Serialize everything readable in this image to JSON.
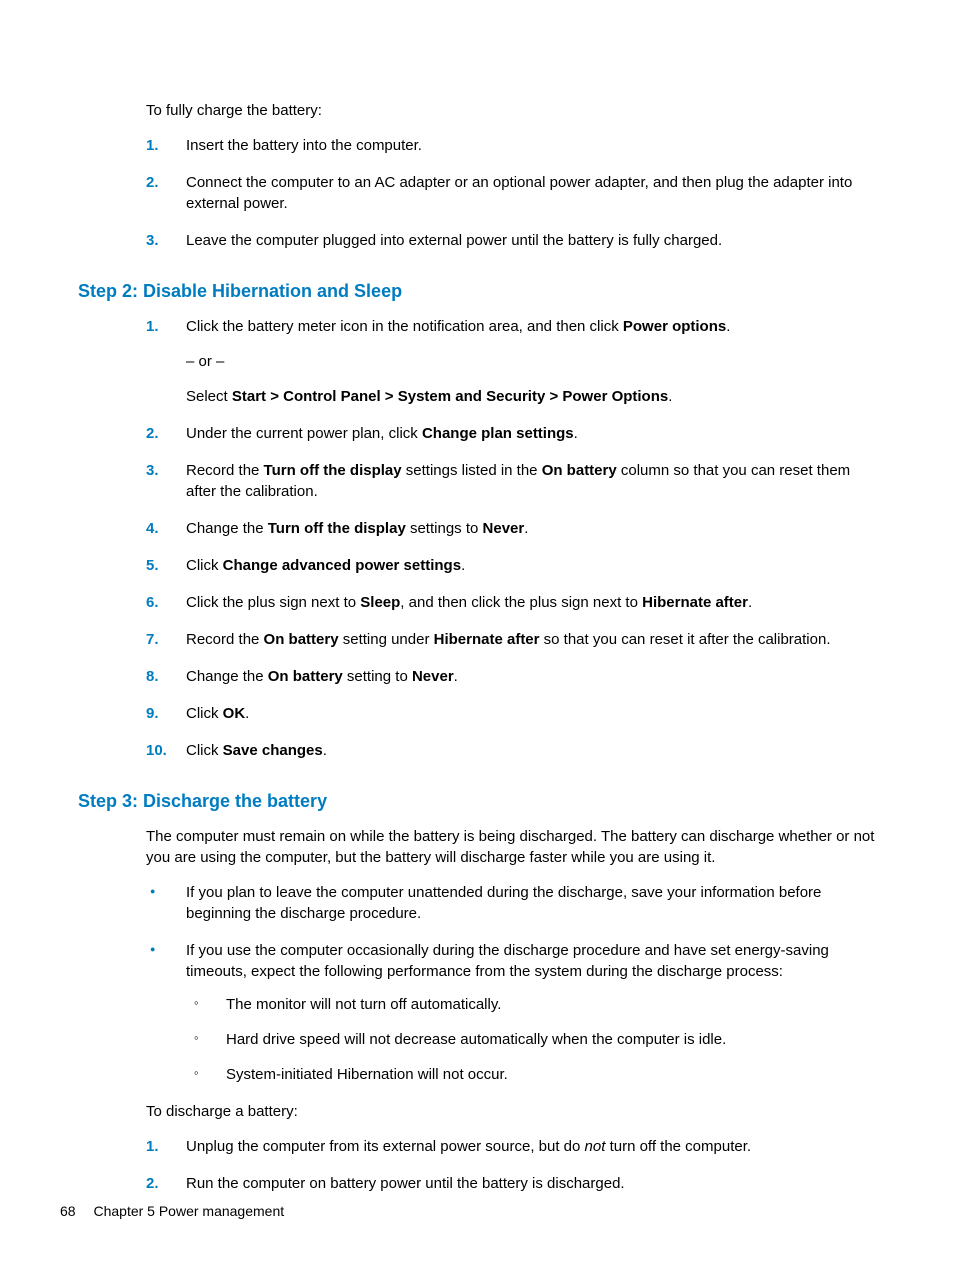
{
  "colors": {
    "accent": "#007cc1",
    "text": "#000000",
    "bg": "#ffffff"
  },
  "intro": "To fully charge the battery:",
  "chargeSteps": {
    "s1": "Insert the battery into the computer.",
    "s2": "Connect the computer to an AC adapter or an optional power adapter, and then plug the adapter into external power.",
    "s3": "Leave the computer plugged into external power until the battery is fully charged."
  },
  "step2": {
    "heading": "Step 2: Disable Hibernation and Sleep",
    "s1a": "Click the battery meter icon in the notification area, and then click ",
    "s1b": "Power options",
    "s1c": ".",
    "or": "– or –",
    "s1d": "Select ",
    "s1e": "Start > Control Panel > System and Security > Power Options",
    "s1f": ".",
    "s2a": "Under the current power plan, click ",
    "s2b": "Change plan settings",
    "s2c": ".",
    "s3a": "Record the ",
    "s3b": "Turn off the display",
    "s3c": " settings listed in the ",
    "s3d": "On battery",
    "s3e": " column so that you can reset them after the calibration.",
    "s4a": "Change the ",
    "s4b": "Turn off the display",
    "s4c": " settings to ",
    "s4d": "Never",
    "s4e": ".",
    "s5a": "Click ",
    "s5b": "Change advanced power settings",
    "s5c": ".",
    "s6a": "Click the plus sign next to ",
    "s6b": "Sleep",
    "s6c": ", and then click the plus sign next to ",
    "s6d": "Hibernate after",
    "s6e": ".",
    "s7a": "Record the ",
    "s7b": "On battery",
    "s7c": " setting under ",
    "s7d": "Hibernate after",
    "s7e": " so that you can reset it after the calibration.",
    "s8a": "Change the ",
    "s8b": "On battery",
    "s8c": " setting to ",
    "s8d": "Never",
    "s8e": ".",
    "s9a": "Click ",
    "s9b": "OK",
    "s9c": ".",
    "s10a": "Click ",
    "s10b": "Save changes",
    "s10c": "."
  },
  "step3": {
    "heading": "Step 3: Discharge the battery",
    "p1": "The computer must remain on while the battery is being discharged. The battery can discharge whether or not you are using the computer, but the battery will discharge faster while you are using it.",
    "b1": "If you plan to leave the computer unattended during the discharge, save your information before beginning the discharge procedure.",
    "b2": "If you use the computer occasionally during the discharge procedure and have set energy-saving timeouts, expect the following performance from the system during the discharge process:",
    "c1": "The monitor will not turn off automatically.",
    "c2": "Hard drive speed will not decrease automatically when the computer is idle.",
    "c3": "System-initiated Hibernation will not occur.",
    "p2": "To discharge a battery:",
    "d1a": "Unplug the computer from its external power source, but do ",
    "d1b": "not",
    "d1c": " turn off the computer.",
    "d2": "Run the computer on battery power until the battery is discharged."
  },
  "nums": {
    "n1": "1.",
    "n2": "2.",
    "n3": "3.",
    "n4": "4.",
    "n5": "5.",
    "n6": "6.",
    "n7": "7.",
    "n8": "8.",
    "n9": "9.",
    "n10": "10."
  },
  "footer": {
    "page": "68",
    "chapter": "Chapter 5   Power management"
  }
}
